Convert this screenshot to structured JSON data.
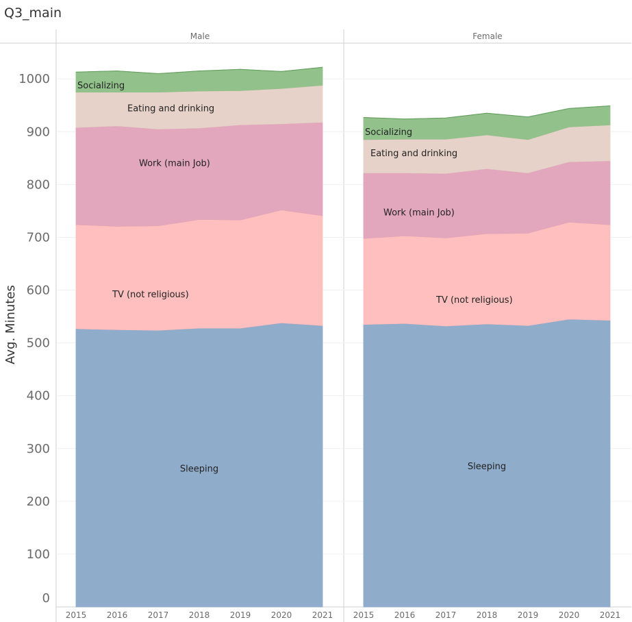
{
  "sheet": {
    "title": "Q3_main"
  },
  "chart_data": {
    "type": "area",
    "stacked": true,
    "ylabel": "Avg. Minutes",
    "ylim": [
      0,
      1060
    ],
    "yticks": [
      0,
      100,
      200,
      300,
      400,
      500,
      600,
      700,
      800,
      900,
      1000
    ],
    "x": [
      "2015",
      "2016",
      "2017",
      "2018",
      "2019",
      "2020",
      "2021"
    ],
    "grid": true,
    "colors": {
      "Sleeping": "#8facca",
      "TV (not religious)": "#ffbfbf",
      "Work (main Job)": "#e2a7bd",
      "Eating and drinking": "#e7d2c9",
      "Socializing": "#92c18b"
    },
    "panels": [
      {
        "name": "Male",
        "series": [
          {
            "name": "Sleeping",
            "values": [
              527,
              525,
              524,
              528,
              528,
              538,
              533
            ]
          },
          {
            "name": "TV (not religious)",
            "values": [
              197,
              196,
              198,
              206,
              205,
              214,
              208
            ]
          },
          {
            "name": "Work (main Job)",
            "values": [
              184,
              190,
              183,
              173,
              180,
              163,
              177
            ]
          },
          {
            "name": "Eating and drinking",
            "values": [
              67,
              64,
              70,
              70,
              65,
              67,
              70
            ]
          },
          {
            "name": "Socializing",
            "values": [
              38,
              40,
              35,
              38,
              40,
              32,
              34
            ]
          }
        ]
      },
      {
        "name": "Female",
        "series": [
          {
            "name": "Sleeping",
            "values": [
              535,
              537,
              532,
              536,
              533,
              545,
              543
            ]
          },
          {
            "name": "TV (not religious)",
            "values": [
              163,
              166,
              167,
              171,
              175,
              184,
              181
            ]
          },
          {
            "name": "Work (main Job)",
            "values": [
              124,
              119,
              122,
              123,
              114,
              114,
              121
            ]
          },
          {
            "name": "Eating and drinking",
            "values": [
              63,
              64,
              65,
              64,
              63,
              66,
              68
            ]
          },
          {
            "name": "Socializing",
            "values": [
              42,
              38,
              40,
              41,
              43,
              35,
              36
            ]
          }
        ]
      }
    ]
  }
}
